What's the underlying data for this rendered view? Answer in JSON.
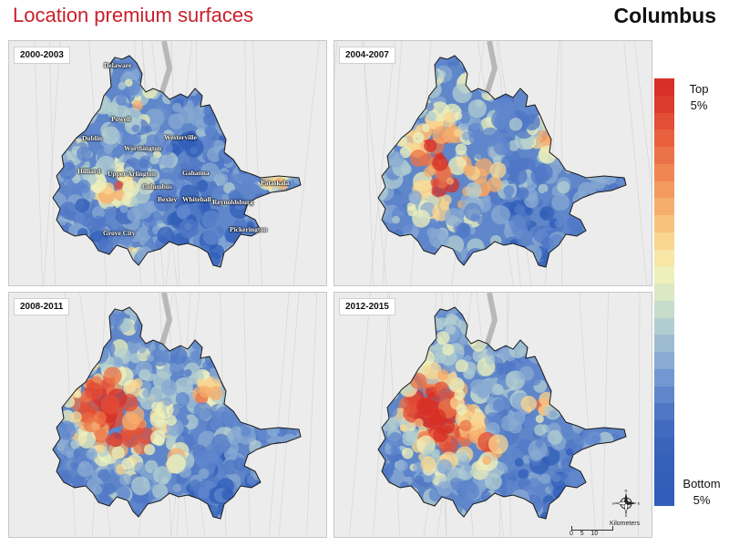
{
  "header": {
    "title": "Location premium surfaces",
    "city": "Columbus"
  },
  "panels": [
    {
      "period": "2000-2003"
    },
    {
      "period": "2004-2007"
    },
    {
      "period": "2008-2011"
    },
    {
      "period": "2012-2015"
    }
  ],
  "place_labels": [
    "Delaware",
    "Powell",
    "Dublin",
    "Westerville",
    "Worthington",
    "Hilliard",
    "Upper Arlington",
    "Gahanna",
    "Columbus",
    "Bexley",
    "Whitehall",
    "Reynoldsburg",
    "Pataskala",
    "Grove City",
    "Pickerington"
  ],
  "legend": {
    "top_label": "Top 5%",
    "bottom_label": "Bottom 5%",
    "colors": [
      "#d73027",
      "#dc3b2d",
      "#e34e36",
      "#e8603d",
      "#ec7347",
      "#f08652",
      "#f39a5e",
      "#f6ae6c",
      "#f8c27c",
      "#f9d690",
      "#f7e6a6",
      "#eef0bb",
      "#dbe8c4",
      "#c7dccb",
      "#b2cdd0",
      "#9dbcd3",
      "#88aad3",
      "#7398d1",
      "#6087cc",
      "#4f77c6",
      "#426bc0",
      "#3a63bb",
      "#3560b9",
      "#325fb8",
      "#305eb8"
    ]
  },
  "scale": {
    "unit": "Kilometers",
    "ticks": [
      "0",
      "5",
      "10"
    ]
  },
  "compass": {
    "n": "N",
    "s": "S",
    "e": "E",
    "w": "W"
  },
  "colors": {
    "high": "#d73027",
    "mid": "#f7e6a6",
    "low": "#4f77c6",
    "title": "#c8202a"
  }
}
